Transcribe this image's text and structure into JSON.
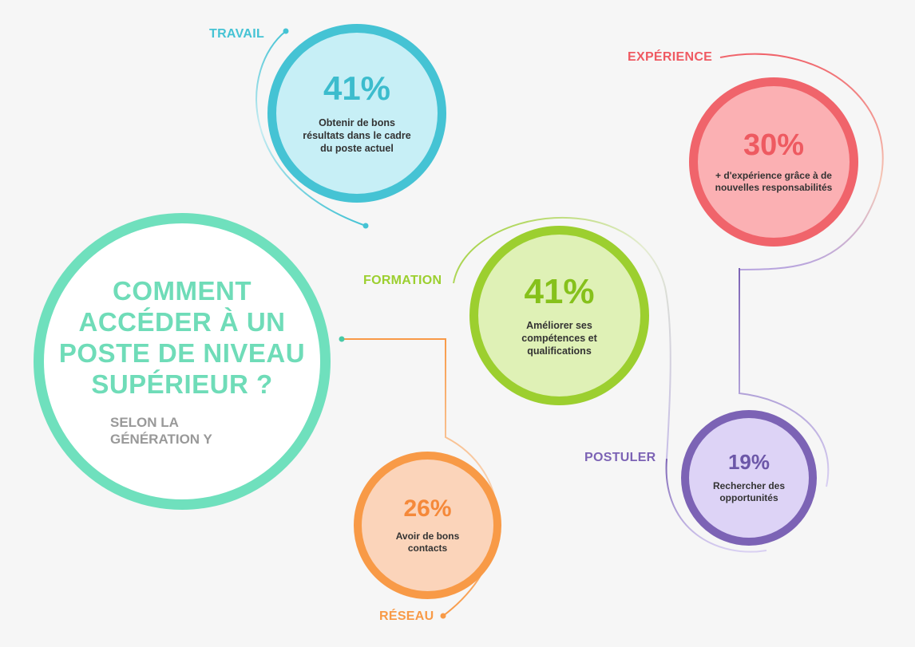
{
  "center": {
    "title": "COMMENT ACCÉDER À UN POSTE DE NIVEAU SUPÉRIEUR ?",
    "subtitle": "SELON LA GÉNÉRATION Y"
  },
  "nodes": {
    "travail": {
      "label": "TRAVAIL",
      "percent": "41%",
      "text": "Obtenir de bons résultats dans le cadre du poste actuel"
    },
    "experience": {
      "label": "EXPÉRIENCE",
      "percent": "30%",
      "text": "+ d'expérience grâce à de nouvelles responsabilités"
    },
    "formation": {
      "label": "FORMATION",
      "percent": "41%",
      "text": "Améliorer ses compétences et qualifications"
    },
    "postuler": {
      "label": "POSTULER",
      "percent": "19%",
      "text": "Rechercher des opportunités"
    },
    "reseau": {
      "label": "RÉSEAU",
      "percent": "26%",
      "text": "Avoir de bons contacts"
    }
  },
  "colors": {
    "travail": "#45c3d4",
    "experience": "#f0646b",
    "formation": "#9ccf2f",
    "postuler": "#7c63b5",
    "reseau": "#f89a47",
    "center": "#6fe0bd"
  }
}
